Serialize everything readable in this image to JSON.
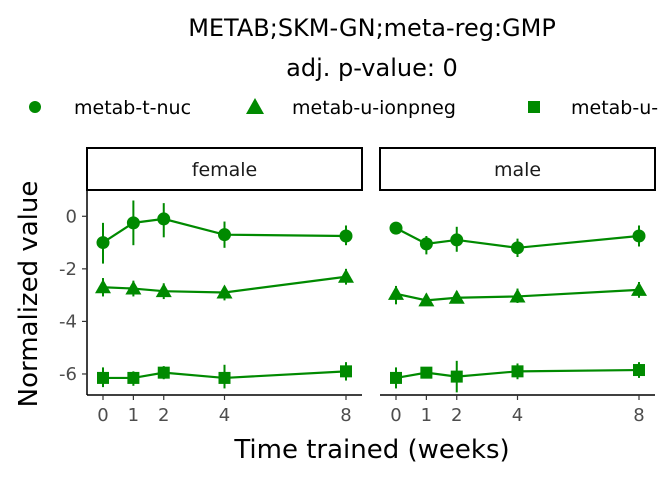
{
  "chart_data": {
    "type": "line",
    "title": "METAB;SKM-GN;meta-reg:GMP",
    "subtitle": "adj. p-value: 0",
    "xlabel": "Time trained (weeks)",
    "ylabel": "Normalized value",
    "x": [
      0,
      1,
      2,
      4,
      8
    ],
    "x_ticks": [
      "0",
      "1",
      "2",
      "4",
      "8"
    ],
    "y_ticks": [
      0,
      -2,
      -4,
      -6
    ],
    "y_tick_labels": [
      "0",
      "-2",
      "-4",
      "-6"
    ],
    "ylim": [
      -6.8,
      1.0
    ],
    "color": "#008a00",
    "legend": [
      "metab-t-nuc",
      "metab-u-ionpneg",
      "metab-u-"
    ],
    "panels": [
      {
        "label": "female",
        "series": [
          {
            "name": "metab-t-nuc",
            "marker": "circle",
            "values": [
              -1.0,
              -0.25,
              -0.1,
              -0.7,
              -0.75
            ],
            "upper": [
              -0.25,
              0.6,
              0.5,
              -0.2,
              -0.35
            ],
            "lower": [
              -1.8,
              -1.1,
              -0.8,
              -1.2,
              -1.1
            ]
          },
          {
            "name": "metab-u-ionpneg",
            "marker": "triangle",
            "values": [
              -2.7,
              -2.75,
              -2.85,
              -2.9,
              -2.3
            ],
            "upper": [
              -2.35,
              -2.45,
              -2.55,
              -2.65,
              -2.0
            ],
            "lower": [
              -3.05,
              -3.05,
              -3.15,
              -3.2,
              -2.6
            ]
          },
          {
            "name": "metab-u-",
            "marker": "square",
            "values": [
              -6.15,
              -6.15,
              -5.95,
              -6.15,
              -5.9
            ],
            "upper": [
              -5.75,
              -5.9,
              -5.7,
              -5.65,
              -5.55
            ],
            "lower": [
              -6.5,
              -6.45,
              -6.2,
              -6.55,
              -6.25
            ]
          }
        ]
      },
      {
        "label": "male",
        "series": [
          {
            "name": "metab-t-nuc",
            "marker": "circle",
            "values": [
              -0.45,
              -1.05,
              -0.9,
              -1.2,
              -0.75
            ],
            "upper": [
              -0.3,
              -0.75,
              -0.4,
              -0.85,
              -0.35
            ],
            "lower": [
              -0.6,
              -1.45,
              -1.35,
              -1.55,
              -1.15
            ]
          },
          {
            "name": "metab-u-ionpneg",
            "marker": "triangle",
            "values": [
              -2.95,
              -3.2,
              -3.1,
              -3.05,
              -2.8
            ],
            "upper": [
              -2.65,
              -2.95,
              -2.85,
              -2.75,
              -2.5
            ],
            "lower": [
              -3.35,
              -3.4,
              -3.3,
              -3.3,
              -3.1
            ]
          },
          {
            "name": "metab-u-",
            "marker": "square",
            "values": [
              -6.15,
              -5.95,
              -6.1,
              -5.9,
              -5.85
            ],
            "upper": [
              -5.75,
              -5.8,
              -5.5,
              -5.6,
              -5.55
            ],
            "lower": [
              -6.55,
              -6.1,
              -6.7,
              -6.2,
              -6.15
            ]
          }
        ]
      }
    ]
  }
}
